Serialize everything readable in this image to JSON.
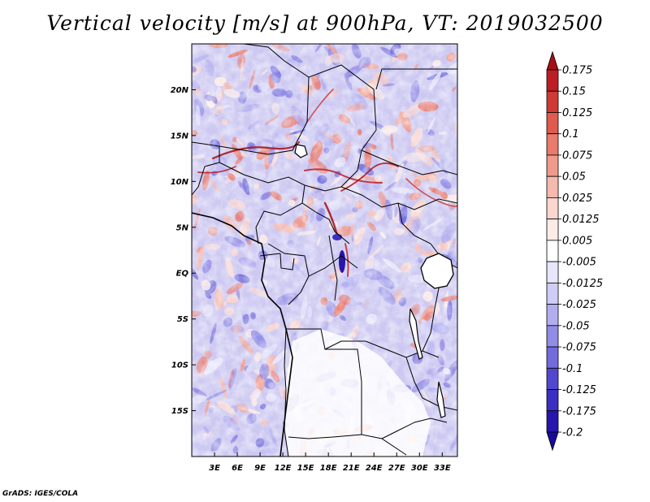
{
  "title": "Vertical velocity [m/s] at 900hPa, VT: 2019032500",
  "credit": "GrADS: IGES/COLA",
  "map": {
    "lon_range": [
      0,
      35
    ],
    "lat_range": [
      -20,
      25
    ],
    "lat_ticks": [
      {
        "value": 20,
        "label": "20N"
      },
      {
        "value": 15,
        "label": "15N"
      },
      {
        "value": 10,
        "label": "10N"
      },
      {
        "value": 5,
        "label": "5N"
      },
      {
        "value": 0,
        "label": "EQ"
      },
      {
        "value": -5,
        "label": "5S"
      },
      {
        "value": -10,
        "label": "10S"
      },
      {
        "value": -15,
        "label": "15S"
      }
    ],
    "lon_ticks": [
      {
        "value": 3,
        "label": "3E"
      },
      {
        "value": 6,
        "label": "6E"
      },
      {
        "value": 9,
        "label": "9E"
      },
      {
        "value": 12,
        "label": "12E"
      },
      {
        "value": 15,
        "label": "15E"
      },
      {
        "value": 18,
        "label": "18E"
      },
      {
        "value": 21,
        "label": "21E"
      },
      {
        "value": 24,
        "label": "24E"
      },
      {
        "value": 27,
        "label": "27E"
      },
      {
        "value": 30,
        "label": "30E"
      },
      {
        "value": 33,
        "label": "33E"
      }
    ]
  },
  "colorbar": {
    "unit": "m/s",
    "levels": [
      {
        "label": "0.175",
        "color": "#a50f15"
      },
      {
        "label": "0.15",
        "color": "#bd1e24"
      },
      {
        "label": "0.125",
        "color": "#cf3a36"
      },
      {
        "label": "0.1",
        "color": "#e05a4e"
      },
      {
        "label": "0.075",
        "color": "#e97a6c"
      },
      {
        "label": "0.05",
        "color": "#f09a8c"
      },
      {
        "label": "0.025",
        "color": "#f6b9ad"
      },
      {
        "label": "0.0125",
        "color": "#fbd6ce"
      },
      {
        "label": "0.005",
        "color": "#fdebe6"
      },
      {
        "label": "-0.005",
        "color": "#ffffff"
      },
      {
        "label": "-0.0125",
        "color": "#e7e6fb"
      },
      {
        "label": "-0.025",
        "color": "#cfcdf6"
      },
      {
        "label": "-0.05",
        "color": "#b1aef0"
      },
      {
        "label": "-0.075",
        "color": "#918ce6"
      },
      {
        "label": "-0.1",
        "color": "#716bdc"
      },
      {
        "label": "-0.125",
        "color": "#5048cf"
      },
      {
        "label": "-0.175",
        "color": "#3a2fc2"
      },
      {
        "label": "-0.2",
        "color": "#2815ad"
      }
    ],
    "top_color": "#a50f15",
    "bottom_color": "#1a0a99"
  }
}
